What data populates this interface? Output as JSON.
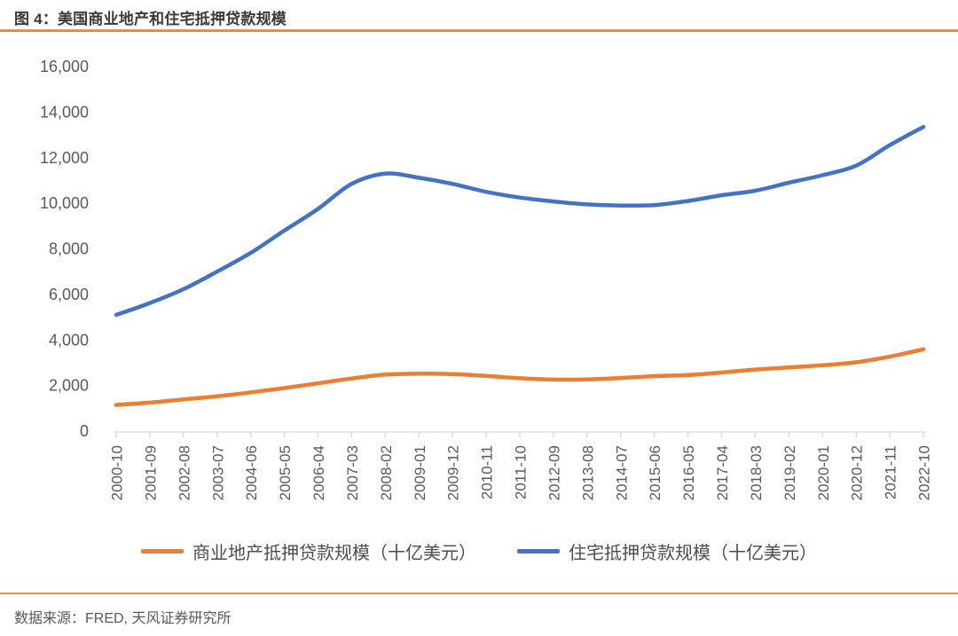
{
  "header": {
    "title": "图 4：美国商业地产和住宅抵押贷款规模",
    "underline_color": "#F08C3E"
  },
  "chart_data": {
    "type": "line",
    "title": "图 4：美国商业地产和住宅抵押贷款规模",
    "categories": [
      "2000-10",
      "2001-09",
      "2002-08",
      "2003-07",
      "2004-06",
      "2005-05",
      "2006-04",
      "2007-03",
      "2008-02",
      "2009-01",
      "2009-12",
      "2010-11",
      "2011-10",
      "2012-09",
      "2013-08",
      "2014-07",
      "2015-06",
      "2016-05",
      "2017-04",
      "2018-03",
      "2019-02",
      "2020-01",
      "2020-12",
      "2021-11",
      "2022-10"
    ],
    "series": [
      {
        "name": "商业地产抵押贷款规模（十亿美元）",
        "color": "#ED7D31",
        "values": [
          1150,
          1250,
          1390,
          1530,
          1700,
          1890,
          2100,
          2310,
          2480,
          2520,
          2500,
          2420,
          2320,
          2260,
          2270,
          2330,
          2410,
          2460,
          2570,
          2700,
          2790,
          2890,
          3020,
          3270,
          3590
        ]
      },
      {
        "name": "住宅抵押贷款规模（十亿美元）",
        "color": "#4472C4",
        "values": [
          5100,
          5620,
          6230,
          7000,
          7820,
          8800,
          9750,
          10850,
          11300,
          11120,
          10850,
          10500,
          10250,
          10080,
          9950,
          9900,
          9920,
          10100,
          10350,
          10550,
          10900,
          11230,
          11650,
          12550,
          13350
        ]
      }
    ],
    "ylim": [
      0,
      16000
    ],
    "y_tick_values": [
      0,
      2000,
      4000,
      6000,
      8000,
      10000,
      12000,
      14000,
      16000
    ],
    "y_tick_labels": [
      "0",
      "2,000",
      "4,000",
      "6,000",
      "8,000",
      "10,000",
      "12,000",
      "14,000",
      "16,000"
    ],
    "grid": false,
    "legend_position": "bottom",
    "axis_color": "#D9D9D9",
    "tick_label_color": "#595959",
    "line_width": 4.5
  },
  "footer": {
    "source": "数据来源：FRED, 天风证券研究所",
    "divider_color": "#F08C3E"
  }
}
